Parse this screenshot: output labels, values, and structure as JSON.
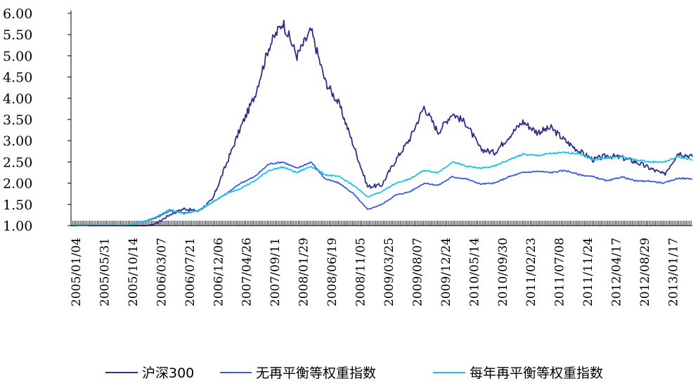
{
  "chart_data": {
    "type": "line",
    "title": "",
    "xlabel": "",
    "ylabel": "",
    "ylim": [
      1.0,
      6.0
    ],
    "y_ticks": [
      "1.00",
      "1.50",
      "2.00",
      "2.50",
      "3.00",
      "3.50",
      "4.00",
      "4.50",
      "5.00",
      "5.50",
      "6.00"
    ],
    "x_ticks": [
      "2005/01/04",
      "2005/05/31",
      "2005/10/14",
      "2006/03/07",
      "2006/07/21",
      "2006/12/06",
      "2007/04/26",
      "2007/09/11",
      "2008/01/29",
      "2008/06/19",
      "2008/11/05",
      "2009/03/25",
      "2009/08/07",
      "2009/12/24",
      "2010/05/14",
      "2010/09/30",
      "2011/02/23",
      "2011/07/08",
      "2011/11/24",
      "2012/04/17",
      "2012/08/29",
      "2013/01/17"
    ],
    "grid": false,
    "legend_position": "bottom",
    "x": [
      "2005/01/04",
      "2005/03/15",
      "2005/05/31",
      "2005/08/09",
      "2005/10/14",
      "2005/12/30",
      "2006/03/07",
      "2006/05/16",
      "2006/07/21",
      "2006/09/29",
      "2006/12/06",
      "2007/02/15",
      "2007/04/26",
      "2007/07/06",
      "2007/09/11",
      "2007/10/16",
      "2007/11/20",
      "2008/01/29",
      "2008/04/10",
      "2008/06/19",
      "2008/09/02",
      "2008/11/05",
      "2009/01/20",
      "2009/03/25",
      "2009/06/01",
      "2009/08/07",
      "2009/10/27",
      "2009/12/24",
      "2010/03/10",
      "2010/05/14",
      "2010/07/26",
      "2010/09/30",
      "2010/12/10",
      "2011/02/23",
      "2011/05/05",
      "2011/07/08",
      "2011/09/20",
      "2011/11/24",
      "2012/02/13",
      "2012/04/17",
      "2012/06/26",
      "2012/08/29",
      "2012/11/05",
      "2013/01/17",
      "2013/03/15"
    ],
    "series": [
      {
        "name": "沪深300",
        "color": "#2e2e8c",
        "values": [
          1.0,
          1.01,
          0.97,
          0.94,
          0.93,
          0.98,
          1.04,
          1.26,
          1.4,
          1.34,
          1.6,
          2.45,
          3.3,
          4.05,
          5.2,
          5.8,
          5.0,
          5.6,
          4.4,
          3.85,
          2.9,
          1.92,
          1.95,
          2.55,
          3.05,
          3.8,
          3.2,
          3.65,
          3.4,
          2.8,
          2.72,
          3.1,
          3.45,
          3.2,
          3.3,
          3.0,
          2.75,
          2.55,
          2.65,
          2.6,
          2.5,
          2.35,
          2.2,
          2.72,
          2.62
        ]
      },
      {
        "name": "无再平衡等权重指数",
        "color": "#3a5be0",
        "values": [
          1.0,
          1.02,
          1.0,
          0.99,
          1.01,
          1.08,
          1.18,
          1.35,
          1.3,
          1.35,
          1.55,
          1.75,
          2.0,
          2.15,
          2.45,
          2.5,
          2.35,
          2.5,
          2.1,
          2.0,
          1.75,
          1.38,
          1.5,
          1.72,
          1.8,
          2.0,
          1.95,
          2.15,
          2.1,
          1.98,
          2.0,
          2.15,
          2.25,
          2.28,
          2.25,
          2.3,
          2.2,
          2.15,
          2.05,
          2.15,
          2.05,
          2.05,
          2.0,
          2.12,
          2.1
        ]
      },
      {
        "name": "每年再平衡等权重指数",
        "color": "#19c3e8",
        "values": [
          1.0,
          1.02,
          1.0,
          0.99,
          1.01,
          1.08,
          1.2,
          1.38,
          1.28,
          1.35,
          1.55,
          1.75,
          1.88,
          2.05,
          2.3,
          2.38,
          2.25,
          2.4,
          2.2,
          2.15,
          1.95,
          1.68,
          1.8,
          2.0,
          2.1,
          2.3,
          2.25,
          2.5,
          2.4,
          2.35,
          2.4,
          2.55,
          2.68,
          2.65,
          2.7,
          2.72,
          2.7,
          2.55,
          2.6,
          2.62,
          2.55,
          2.5,
          2.5,
          2.62,
          2.55
        ]
      }
    ]
  }
}
